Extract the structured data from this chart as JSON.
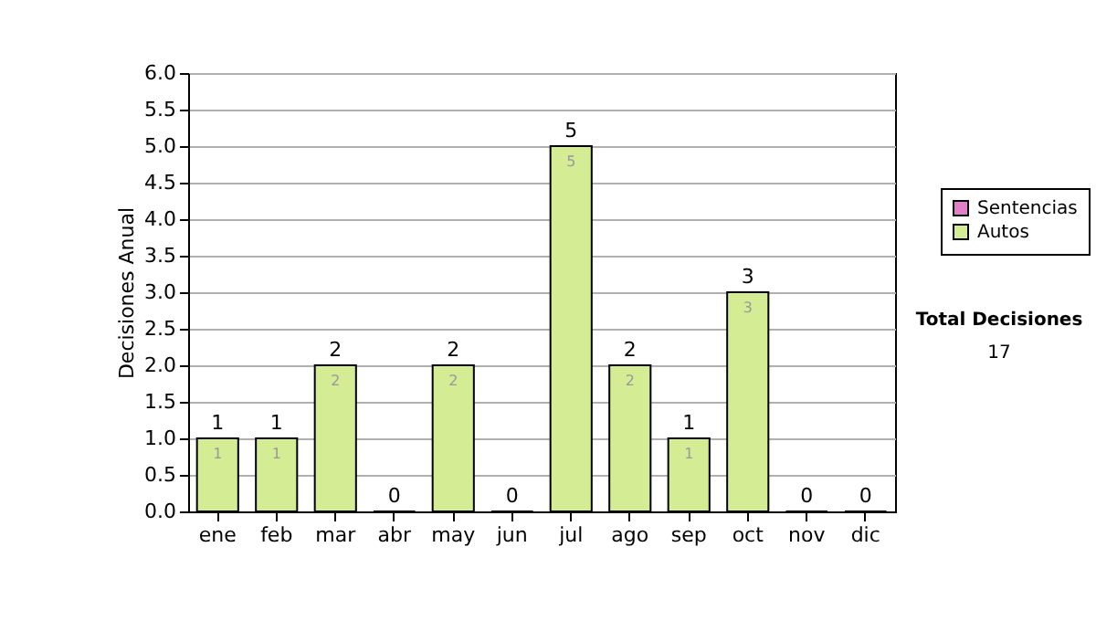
{
  "chart_data": {
    "type": "bar",
    "stacked": true,
    "ylabel": "Decisiones Anual",
    "categories": [
      "ene",
      "feb",
      "mar",
      "abr",
      "may",
      "jun",
      "jul",
      "ago",
      "sep",
      "oct",
      "nov",
      "dic"
    ],
    "series": [
      {
        "name": "Sentencias",
        "color": "#e080c8",
        "values": [
          0,
          0,
          0,
          0,
          0,
          0,
          0,
          0,
          0,
          0,
          0,
          0
        ]
      },
      {
        "name": "Autos",
        "color": "#d4ec94",
        "values": [
          1,
          1,
          2,
          0,
          2,
          0,
          5,
          2,
          1,
          3,
          0,
          0
        ],
        "value_labels": [
          "1",
          "1",
          "2",
          null,
          "2",
          null,
          "5",
          "2",
          "1",
          "3",
          null,
          null
        ]
      }
    ],
    "totals": [
      "1",
      "1",
      "2",
      "0",
      "2",
      "0",
      "5",
      "2",
      "1",
      "3",
      "0",
      "0"
    ],
    "ylim": [
      0,
      6
    ],
    "yticks": [
      {
        "value": 0,
        "label": "0.0"
      },
      {
        "value": 0.5,
        "label": "0.5"
      },
      {
        "value": 1,
        "label": "1.0"
      },
      {
        "value": 1.5,
        "label": "1.5"
      },
      {
        "value": 2,
        "label": "2.0"
      },
      {
        "value": 2.5,
        "label": "2.5"
      },
      {
        "value": 3,
        "label": "3.0"
      },
      {
        "value": 3.5,
        "label": "3.5"
      },
      {
        "value": 4,
        "label": "4.0"
      },
      {
        "value": 4.5,
        "label": "4.5"
      },
      {
        "value": 5,
        "label": "5.0"
      },
      {
        "value": 5.5,
        "label": "5.5"
      },
      {
        "value": 6,
        "label": "6.0"
      }
    ],
    "grid": "y",
    "legend": "right",
    "annotations": [
      "Total Decisiones",
      "17"
    ]
  }
}
